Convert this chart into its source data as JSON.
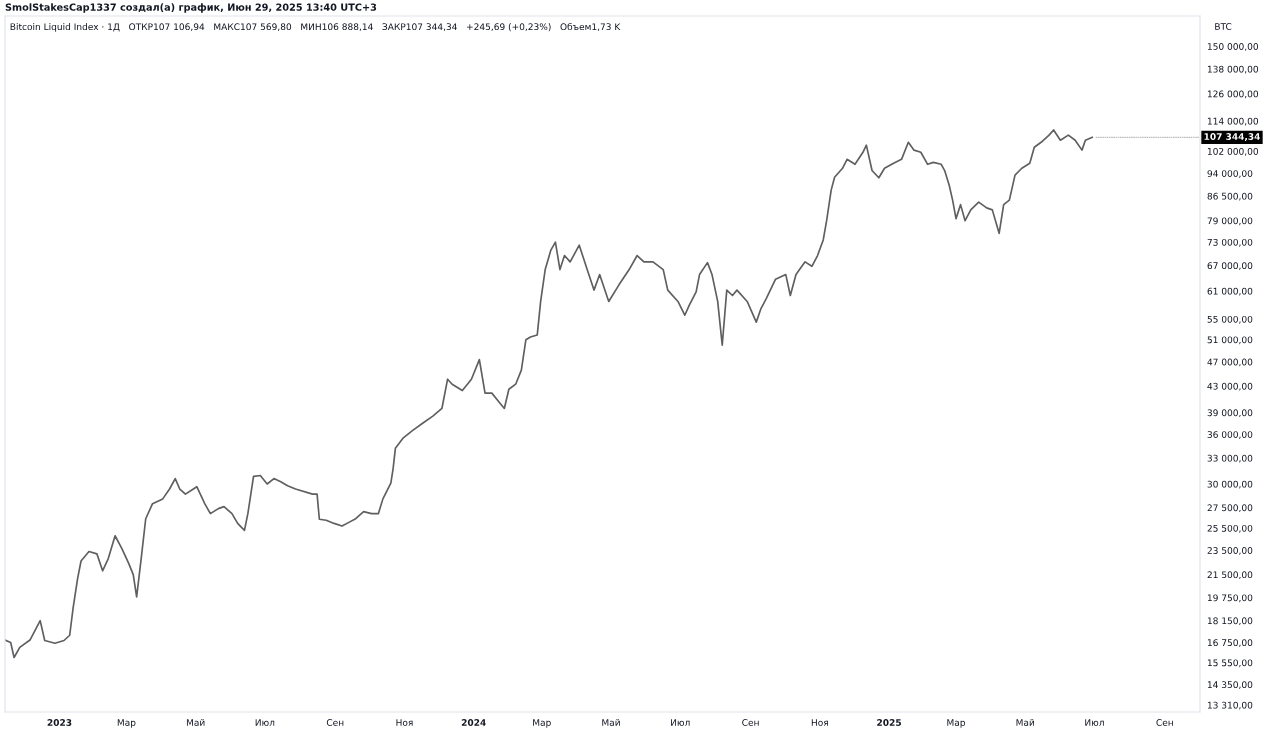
{
  "chart_data": {
    "type": "line",
    "title": "SmolStakesCap1337 создал(а) график, Июн 29, 2025 13:40 UTC+3",
    "subtitle": "Bitcoin Liquid Index · 1Д   ОТКР107 106,94   МАКС107 569,80   МИН106 888,14   ЗАКР107 344,34   +245,69 (+0,23%)   Объем1,73 K",
    "ylabel": "BTC",
    "log": true,
    "x": [
      "2022-11-14",
      "2022-11-19",
      "2022-11-22",
      "2022-11-27",
      "2022-12-06",
      "2022-12-15",
      "2022-12-19",
      "2022-12-28",
      "2023-01-05",
      "2023-01-10",
      "2023-01-13",
      "2023-01-17",
      "2023-01-20",
      "2023-01-27",
      "2023-02-03",
      "2023-02-08",
      "2023-02-13",
      "2023-02-19",
      "2023-02-25",
      "2023-03-03",
      "2023-03-07",
      "2023-03-10",
      "2023-03-14",
      "2023-03-18",
      "2023-03-24",
      "2023-04-02",
      "2023-04-08",
      "2023-04-13",
      "2023-04-17",
      "2023-04-22",
      "2023-04-29",
      "2023-05-02",
      "2023-05-09",
      "2023-05-14",
      "2023-05-21",
      "2023-05-26",
      "2023-06-02",
      "2023-06-07",
      "2023-06-13",
      "2023-06-16",
      "2023-06-21",
      "2023-06-27",
      "2023-07-03",
      "2023-07-09",
      "2023-07-15",
      "2023-07-21",
      "2023-07-28",
      "2023-08-12",
      "2023-08-16",
      "2023-08-18",
      "2023-08-24",
      "2023-08-31",
      "2023-09-07",
      "2023-09-13",
      "2023-09-19",
      "2023-09-26",
      "2023-10-03",
      "2023-10-09",
      "2023-10-13",
      "2023-10-20",
      "2023-10-22",
      "2023-10-24",
      "2023-10-31",
      "2023-11-08",
      "2023-11-17",
      "2023-11-26",
      "2023-12-04",
      "2023-12-09",
      "2023-12-13",
      "2023-12-22",
      "2023-12-30",
      "2024-01-06",
      "2024-01-11",
      "2024-01-17",
      "2024-01-24",
      "2024-01-28",
      "2024-02-01",
      "2024-02-07",
      "2024-02-12",
      "2024-02-16",
      "2024-02-20",
      "2024-02-26",
      "2024-02-29",
      "2024-03-04",
      "2024-03-09",
      "2024-03-13",
      "2024-03-17",
      "2024-03-21",
      "2024-03-26",
      "2024-04-03",
      "2024-04-10",
      "2024-04-16",
      "2024-04-21",
      "2024-04-29",
      "2024-05-08",
      "2024-05-17",
      "2024-05-24",
      "2024-05-30",
      "2024-06-07",
      "2024-06-16",
      "2024-06-20",
      "2024-06-29",
      "2024-07-05",
      "2024-07-09",
      "2024-07-15",
      "2024-07-18",
      "2024-07-25",
      "2024-07-29",
      "2024-08-03",
      "2024-08-07",
      "2024-08-11",
      "2024-08-16",
      "2024-08-20",
      "2024-08-29",
      "2024-09-06",
      "2024-09-10",
      "2024-09-15",
      "2024-09-23",
      "2024-10-02",
      "2024-10-06",
      "2024-10-11",
      "2024-10-19",
      "2024-10-25",
      "2024-10-30",
      "2024-11-04",
      "2024-11-07",
      "2024-11-11",
      "2024-11-14",
      "2024-11-21",
      "2024-11-25",
      "2024-12-02",
      "2024-12-09",
      "2024-12-12",
      "2024-12-17",
      "2024-12-23",
      "2024-12-28",
      "2025-01-05",
      "2025-01-12",
      "2025-01-18",
      "2025-01-23",
      "2025-01-29",
      "2025-02-04",
      "2025-02-09",
      "2025-02-16",
      "2025-02-19",
      "2025-02-23",
      "2025-02-26",
      "2025-03-01",
      "2025-03-05",
      "2025-03-09",
      "2025-03-14",
      "2025-03-21",
      "2025-03-28",
      "2025-04-02",
      "2025-04-06",
      "2025-04-08",
      "2025-04-12",
      "2025-04-17",
      "2025-04-22",
      "2025-04-28",
      "2025-05-05",
      "2025-05-09",
      "2025-05-15",
      "2025-05-22",
      "2025-05-26",
      "2025-06-01",
      "2025-06-08",
      "2025-06-14",
      "2025-06-20",
      "2025-06-23",
      "2025-06-29"
    ],
    "series": [
      {
        "color": "#5f5f5f",
        "values": [
          16900,
          16750,
          15850,
          16450,
          16900,
          18150,
          16870,
          16700,
          16870,
          17200,
          19000,
          21200,
          22600,
          23400,
          23200,
          21800,
          22800,
          24800,
          23650,
          22400,
          21500,
          19800,
          22800,
          26400,
          27900,
          28400,
          29450,
          30600,
          29450,
          28900,
          29450,
          29700,
          27900,
          26900,
          27400,
          27600,
          26900,
          25950,
          25300,
          26900,
          30850,
          30950,
          30000,
          30600,
          30250,
          29800,
          29450,
          28900,
          28900,
          26350,
          26250,
          25950,
          25700,
          26050,
          26400,
          27100,
          26900,
          26900,
          28400,
          30100,
          31750,
          34200,
          35550,
          36500,
          37500,
          38500,
          39600,
          44100,
          43300,
          42300,
          44100,
          47400,
          41900,
          41900,
          40400,
          39600,
          42500,
          43300,
          45600,
          51000,
          51500,
          51900,
          58700,
          66000,
          70900,
          73000,
          66000,
          69500,
          67900,
          72200,
          66000,
          61200,
          64800,
          58700,
          62400,
          66000,
          69500,
          67900,
          67900,
          66000,
          61200,
          58700,
          55800,
          57900,
          60800,
          64800,
          67700,
          64800,
          58700,
          50000,
          61200,
          60000,
          61200,
          58700,
          54400,
          57100,
          59400,
          63700,
          64800,
          60000,
          64800,
          67900,
          66800,
          69500,
          73600,
          79000,
          88400,
          92700,
          95800,
          99000,
          97200,
          101600,
          104300,
          95000,
          92500,
          95800,
          97600,
          99000,
          105400,
          102400,
          101600,
          97200,
          97900,
          97200,
          95000,
          90000,
          85200,
          79600,
          83800,
          79000,
          82200,
          84600,
          82800,
          82200,
          77600,
          75400,
          83800,
          85200,
          93400,
          95800,
          97600,
          103500,
          105400,
          108200,
          110300,
          106200,
          108200,
          106200,
          102400,
          106200,
          107344.34
        ]
      }
    ],
    "xlim": [
      "2022-11-14",
      "2025-10-02"
    ],
    "xticks": [
      {
        "value": "2023-01-01",
        "label": "2023"
      },
      {
        "value": "2023-03-01",
        "label": "Мар"
      },
      {
        "value": "2023-05-01",
        "label": "Май"
      },
      {
        "value": "2023-07-01",
        "label": "Июл"
      },
      {
        "value": "2023-09-01",
        "label": "Сен"
      },
      {
        "value": "2023-11-01",
        "label": "Ноя"
      },
      {
        "value": "2024-01-01",
        "label": "2024"
      },
      {
        "value": "2024-03-01",
        "label": "Мар"
      },
      {
        "value": "2024-05-01",
        "label": "Май"
      },
      {
        "value": "2024-07-01",
        "label": "Июл"
      },
      {
        "value": "2024-09-01",
        "label": "Сен"
      },
      {
        "value": "2024-11-01",
        "label": "Ноя"
      },
      {
        "value": "2025-01-01",
        "label": "2025"
      },
      {
        "value": "2025-03-01",
        "label": "Мар"
      },
      {
        "value": "2025-05-01",
        "label": "Май"
      },
      {
        "value": "2025-07-01",
        "label": "Июл"
      },
      {
        "value": "2025-09-01",
        "label": "Сен"
      }
    ],
    "ylim": [
      12970,
      167700
    ],
    "yticks": [
      {
        "value": 13310,
        "label": "13 310,00"
      },
      {
        "value": 14350,
        "label": "14 350,00"
      },
      {
        "value": 15550,
        "label": "15 550,00"
      },
      {
        "value": 16750,
        "label": "16 750,00"
      },
      {
        "value": 18150,
        "label": "18 150,00"
      },
      {
        "value": 19750,
        "label": "19 750,00"
      },
      {
        "value": 21500,
        "label": "21 500,00"
      },
      {
        "value": 23500,
        "label": "23 500,00"
      },
      {
        "value": 25500,
        "label": "25 500,00"
      },
      {
        "value": 27500,
        "label": "27 500,00"
      },
      {
        "value": 30000,
        "label": "30 000,00"
      },
      {
        "value": 33000,
        "label": "33 000,00"
      },
      {
        "value": 36000,
        "label": "36 000,00"
      },
      {
        "value": 39000,
        "label": "39 000,00"
      },
      {
        "value": 43000,
        "label": "43 000,00"
      },
      {
        "value": 47000,
        "label": "47 000,00"
      },
      {
        "value": 51000,
        "label": "51 000,00"
      },
      {
        "value": 55000,
        "label": "55 000,00"
      },
      {
        "value": 61000,
        "label": "61 000,00"
      },
      {
        "value": 67000,
        "label": "67 000,00"
      },
      {
        "value": 73000,
        "label": "73 000,00"
      },
      {
        "value": 79000,
        "label": "79 000,00"
      },
      {
        "value": 86500,
        "label": "86 500,00"
      },
      {
        "value": 94000,
        "label": "94 000,00"
      },
      {
        "value": 102000,
        "label": "102 000,00"
      },
      {
        "value": 114000,
        "label": "114 000,00"
      },
      {
        "value": 126000,
        "label": "126 000,00"
      },
      {
        "value": 138000,
        "label": "138 000,00"
      },
      {
        "value": 150000,
        "label": "150 000,00"
      }
    ],
    "annotations": [
      {
        "text": "107 344,34",
        "x": "2025-06-29",
        "y": 107344.34
      }
    ],
    "marker": "none",
    "line_style": "solid"
  }
}
